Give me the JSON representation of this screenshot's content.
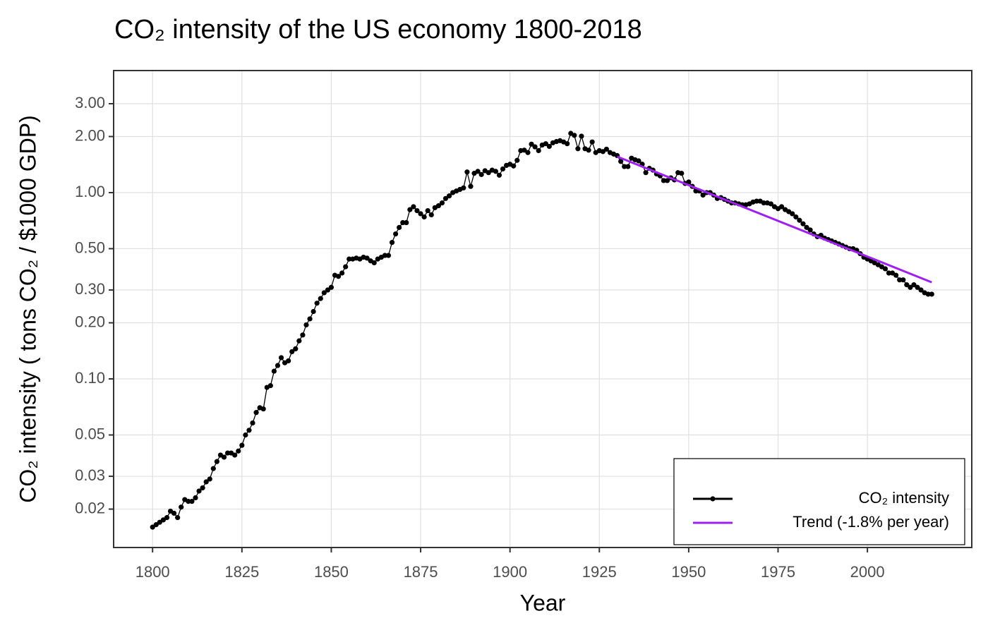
{
  "chart_data": {
    "type": "line",
    "title": "CO₂ intensity of the US economy 1800-2018",
    "xlabel": "Year",
    "ylabel": "CO₂ intensity ( tons CO₂ / $1000 GDP)",
    "log_y": true,
    "grid": true,
    "legend": "bottom-right",
    "xlim": [
      1789.1,
      2029.2
    ],
    "ylim": [
      0.01244,
      4.52
    ],
    "xticks": [
      1800,
      1825,
      1850,
      1875,
      1900,
      1925,
      1950,
      1975,
      2000
    ],
    "yticks": [
      {
        "value": 0.02,
        "label": "0.02"
      },
      {
        "value": 0.03,
        "label": "0.03"
      },
      {
        "value": 0.05,
        "label": "0.05"
      },
      {
        "value": 0.1,
        "label": "0.10"
      },
      {
        "value": 0.2,
        "label": "0.20"
      },
      {
        "value": 0.3,
        "label": "0.30"
      },
      {
        "value": 0.5,
        "label": "0.50"
      },
      {
        "value": 1,
        "label": "1.00"
      },
      {
        "value": 2,
        "label": "2.00"
      },
      {
        "value": 3,
        "label": "3.00"
      }
    ],
    "series": [
      {
        "name": "CO₂ intensity",
        "color": "#000000",
        "markers": true,
        "x": [
          1800,
          1801,
          1802,
          1803,
          1804,
          1805,
          1806,
          1807,
          1808,
          1809,
          1810,
          1811,
          1812,
          1813,
          1814,
          1815,
          1816,
          1817,
          1818,
          1819,
          1820,
          1821,
          1822,
          1823,
          1824,
          1825,
          1826,
          1827,
          1828,
          1829,
          1830,
          1831,
          1832,
          1833,
          1834,
          1835,
          1836,
          1837,
          1838,
          1839,
          1840,
          1841,
          1842,
          1843,
          1844,
          1845,
          1846,
          1847,
          1848,
          1849,
          1850,
          1851,
          1852,
          1853,
          1854,
          1855,
          1856,
          1857,
          1858,
          1859,
          1860,
          1861,
          1862,
          1863,
          1864,
          1865,
          1866,
          1867,
          1868,
          1869,
          1870,
          1871,
          1872,
          1873,
          1874,
          1875,
          1876,
          1877,
          1878,
          1879,
          1880,
          1881,
          1882,
          1883,
          1884,
          1885,
          1886,
          1887,
          1888,
          1889,
          1890,
          1891,
          1892,
          1893,
          1894,
          1895,
          1896,
          1897,
          1898,
          1899,
          1900,
          1901,
          1902,
          1903,
          1904,
          1905,
          1906,
          1907,
          1908,
          1909,
          1910,
          1911,
          1912,
          1913,
          1914,
          1915,
          1916,
          1917,
          1918,
          1919,
          1920,
          1921,
          1922,
          1923,
          1924,
          1925,
          1926,
          1927,
          1928,
          1929,
          1930,
          1931,
          1932,
          1933,
          1934,
          1935,
          1936,
          1937,
          1938,
          1939,
          1940,
          1941,
          1942,
          1943,
          1944,
          1945,
          1946,
          1947,
          1948,
          1949,
          1950,
          1951,
          1952,
          1953,
          1954,
          1955,
          1956,
          1957,
          1958,
          1959,
          1960,
          1961,
          1962,
          1963,
          1964,
          1965,
          1966,
          1967,
          1968,
          1969,
          1970,
          1971,
          1972,
          1973,
          1974,
          1975,
          1976,
          1977,
          1978,
          1979,
          1980,
          1981,
          1982,
          1983,
          1984,
          1985,
          1986,
          1987,
          1988,
          1989,
          1990,
          1991,
          1992,
          1993,
          1994,
          1995,
          1996,
          1997,
          1998,
          1999,
          2000,
          2001,
          2002,
          2003,
          2004,
          2005,
          2006,
          2007,
          2008,
          2009,
          2010,
          2011,
          2012,
          2013,
          2014,
          2015,
          2016,
          2017,
          2018
        ],
        "values": [
          0.016,
          0.0165,
          0.017,
          0.0175,
          0.018,
          0.0195,
          0.019,
          0.018,
          0.0205,
          0.0225,
          0.022,
          0.022,
          0.023,
          0.025,
          0.026,
          0.028,
          0.029,
          0.033,
          0.036,
          0.039,
          0.038,
          0.04,
          0.04,
          0.039,
          0.041,
          0.044,
          0.05,
          0.053,
          0.058,
          0.066,
          0.07,
          0.069,
          0.09,
          0.092,
          0.11,
          0.118,
          0.13,
          0.122,
          0.125,
          0.14,
          0.145,
          0.16,
          0.172,
          0.195,
          0.21,
          0.23,
          0.255,
          0.27,
          0.29,
          0.3,
          0.31,
          0.36,
          0.355,
          0.37,
          0.4,
          0.44,
          0.44,
          0.445,
          0.44,
          0.45,
          0.445,
          0.43,
          0.42,
          0.44,
          0.45,
          0.46,
          0.46,
          0.54,
          0.6,
          0.65,
          0.69,
          0.69,
          0.81,
          0.84,
          0.8,
          0.77,
          0.74,
          0.8,
          0.76,
          0.83,
          0.85,
          0.88,
          0.93,
          0.96,
          1.0,
          1.02,
          1.04,
          1.06,
          1.29,
          1.08,
          1.27,
          1.3,
          1.25,
          1.31,
          1.28,
          1.32,
          1.3,
          1.24,
          1.34,
          1.4,
          1.42,
          1.39,
          1.49,
          1.68,
          1.69,
          1.64,
          1.82,
          1.76,
          1.68,
          1.8,
          1.83,
          1.77,
          1.85,
          1.88,
          1.9,
          1.87,
          1.83,
          2.08,
          2.03,
          1.72,
          2.01,
          1.72,
          1.69,
          1.87,
          1.64,
          1.68,
          1.66,
          1.71,
          1.64,
          1.61,
          1.58,
          1.47,
          1.38,
          1.38,
          1.53,
          1.5,
          1.48,
          1.42,
          1.28,
          1.35,
          1.32,
          1.26,
          1.23,
          1.16,
          1.16,
          1.2,
          1.17,
          1.28,
          1.27,
          1.12,
          1.14,
          1.08,
          1.02,
          1.02,
          0.97,
          1.0,
          1.0,
          0.97,
          0.93,
          0.94,
          0.92,
          0.9,
          0.88,
          0.88,
          0.87,
          0.86,
          0.86,
          0.87,
          0.89,
          0.9,
          0.9,
          0.88,
          0.88,
          0.87,
          0.84,
          0.82,
          0.84,
          0.81,
          0.79,
          0.77,
          0.74,
          0.71,
          0.68,
          0.65,
          0.63,
          0.6,
          0.58,
          0.59,
          0.57,
          0.56,
          0.55,
          0.54,
          0.53,
          0.52,
          0.51,
          0.5,
          0.5,
          0.49,
          0.47,
          0.45,
          0.44,
          0.43,
          0.42,
          0.41,
          0.4,
          0.39,
          0.37,
          0.37,
          0.36,
          0.34,
          0.34,
          0.32,
          0.31,
          0.32,
          0.31,
          0.3,
          0.29,
          0.285,
          0.285
        ]
      },
      {
        "name": "Trend (-1.8% per year)",
        "color": "#a020f0",
        "markers": false,
        "x": [
          1930,
          2018
        ],
        "values": [
          1.56,
          0.33
        ]
      }
    ]
  }
}
